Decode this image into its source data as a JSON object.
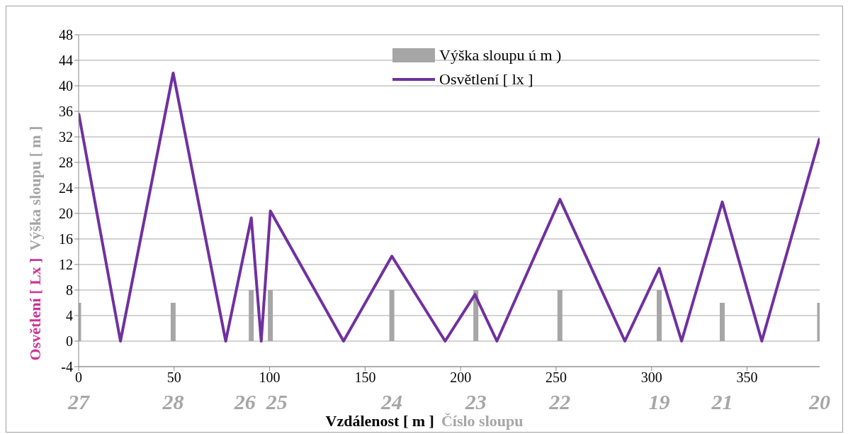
{
  "chart_data": {
    "type": "line",
    "xlabel": "Vzdálenost [ m ]",
    "ylabel": "Osvětlení [ Lx ]",
    "y2label": "Výška sloupu [ m ]",
    "series": [
      {
        "name": "Výška sloupu ú m )",
        "type": "bar",
        "color": "#a6a6a6",
        "x": [
          0,
          49.5,
          90.4,
          100.4,
          164,
          208,
          252,
          304,
          337,
          388
        ],
        "values": [
          6,
          6,
          8,
          8,
          8,
          8,
          8,
          8,
          6,
          6
        ]
      },
      {
        "name": "Osvětlení [ lx ]",
        "color": "#7030a0",
        "x": [
          0,
          21.9,
          49.5,
          77,
          90.4,
          95.6,
          100.4,
          138.7,
          164,
          191.9,
          207.5,
          219,
          252,
          286,
          304,
          315.7,
          337,
          357.7,
          388
        ],
        "values": [
          35.7,
          0,
          42,
          0,
          19.3,
          0,
          20.4,
          0,
          13.3,
          0,
          7.3,
          0,
          22.2,
          0,
          11.4,
          0,
          21.8,
          0,
          31.8
        ]
      }
    ],
    "annotations": [
      "27",
      "28",
      "26",
      "25",
      "24",
      "23",
      "22",
      "19",
      "21",
      "20",
      "Číslo sloupu"
    ],
    "xlim": [
      0,
      388
    ],
    "xticks": [
      0,
      50,
      100,
      150,
      200,
      250,
      300,
      350
    ],
    "ylim": [
      -4,
      48
    ],
    "yticks": [
      -4,
      0,
      4,
      8,
      12,
      16,
      20,
      24,
      28,
      32,
      36,
      40,
      44,
      48
    ],
    "grid": "y",
    "legend": "top",
    "marker": "none",
    "line_style": "solid"
  }
}
